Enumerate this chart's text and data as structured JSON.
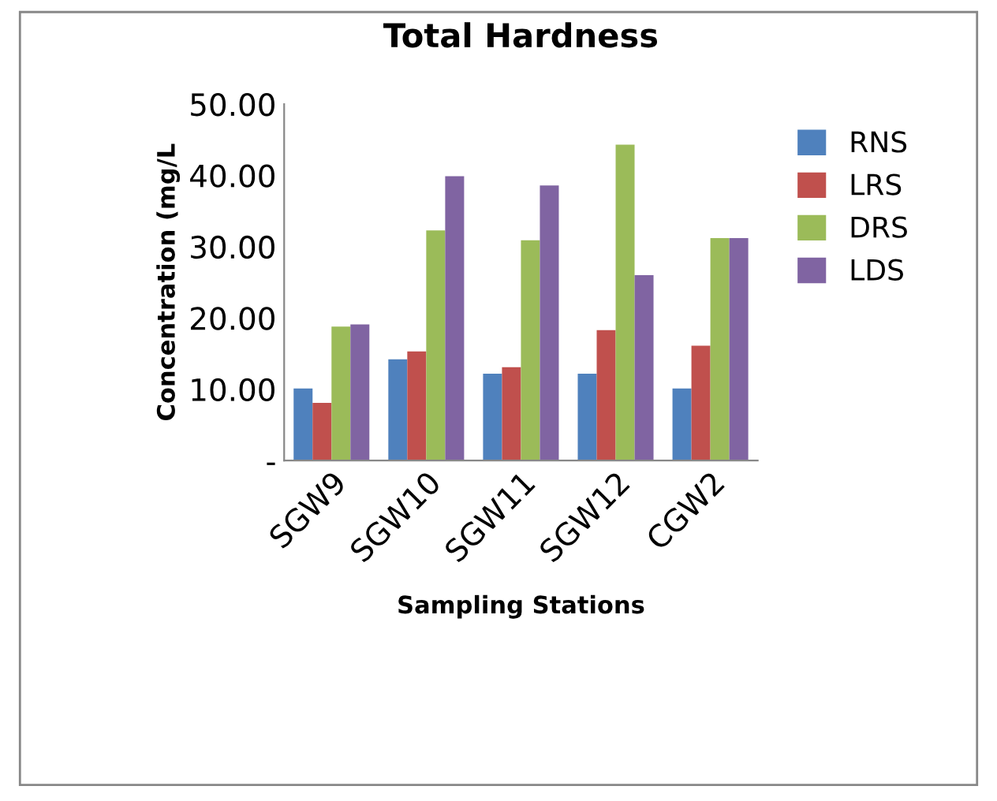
{
  "chart_data": {
    "type": "bar",
    "title": "Total Hardness",
    "xlabel": "Sampling Stations",
    "ylabel": "Concentration (mg/L",
    "categories": [
      "SGW9",
      "SGW10",
      "SGW11",
      "SGW12",
      "CGW2"
    ],
    "series": [
      {
        "name": "RNS",
        "color": "#4f81bd",
        "values": [
          10.1,
          14.2,
          12.2,
          12.2,
          10.1
        ]
      },
      {
        "name": "LRS",
        "color": "#c0504d",
        "values": [
          8.1,
          15.3,
          13.1,
          18.3,
          16.1
        ]
      },
      {
        "name": "DRS",
        "color": "#9bbb59",
        "values": [
          18.8,
          32.3,
          30.9,
          44.3,
          31.2
        ]
      },
      {
        "name": "LDS",
        "color": "#8064a2",
        "values": [
          19.1,
          39.9,
          38.6,
          26.0,
          31.2
        ]
      }
    ],
    "ylim": [
      0,
      50
    ],
    "yticks": [
      {
        "value": 0,
        "label": "-"
      },
      {
        "value": 10,
        "label": "10.00"
      },
      {
        "value": 20,
        "label": "20.00"
      },
      {
        "value": 30,
        "label": "30.00"
      },
      {
        "value": 40,
        "label": "40.00"
      },
      {
        "value": 50,
        "label": "50.00"
      }
    ],
    "grid": false,
    "legend": "right"
  }
}
